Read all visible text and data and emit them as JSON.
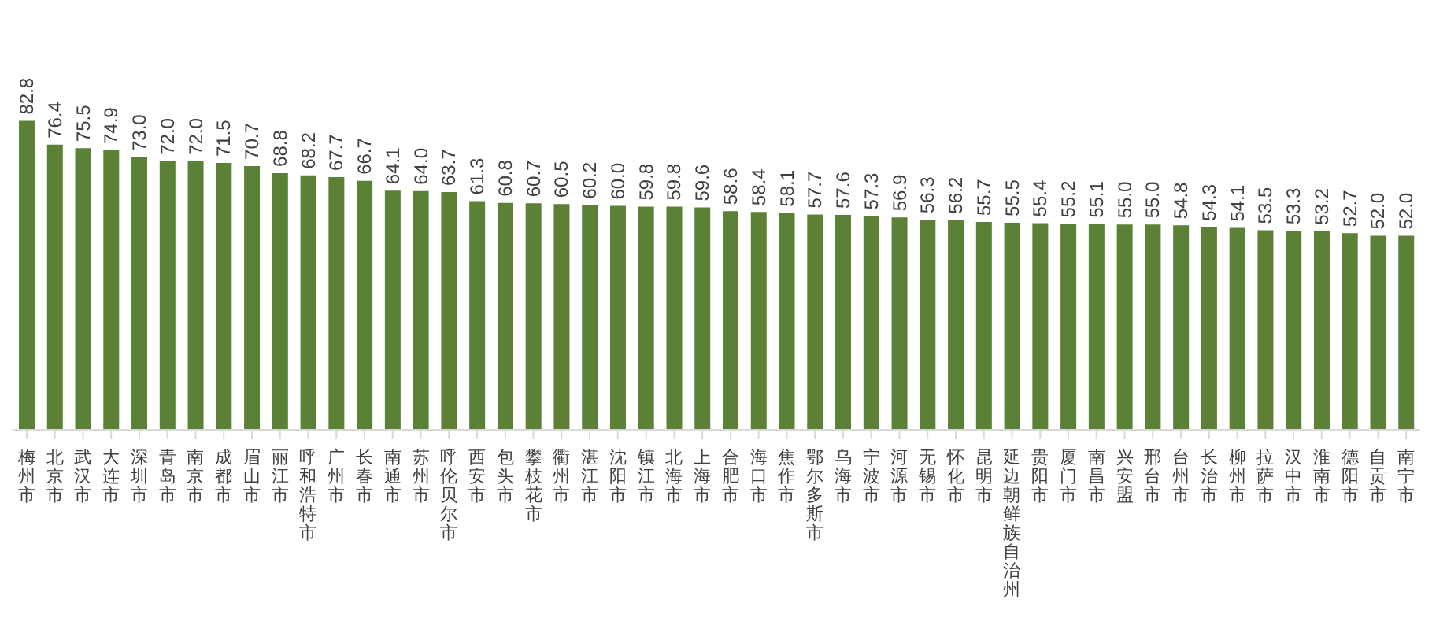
{
  "chart_data": {
    "type": "bar",
    "categories": [
      "梅州市",
      "北京市",
      "武汉市",
      "大连市",
      "深圳市",
      "青岛市",
      "南京市",
      "成都市",
      "眉山市",
      "丽江市",
      "呼和浩特市",
      "广州市",
      "长春市",
      "南通市",
      "苏州市",
      "呼伦贝尔市",
      "西安市",
      "包头市",
      "攀枝花市",
      "衢州市",
      "湛江市",
      "沈阳市",
      "镇江市",
      "北海市",
      "上海市",
      "合肥市",
      "海口市",
      "焦作市",
      "鄂尔多斯市",
      "乌海市",
      "宁波市",
      "河源市",
      "无锡市",
      "怀化市",
      "昆明市",
      "延边朝鲜族自治州",
      "贵阳市",
      "厦门市",
      "南昌市",
      "兴安盟",
      "邢台市",
      "台州市",
      "长治市",
      "柳州市",
      "拉萨市",
      "汉中市",
      "淮南市",
      "德阳市",
      "自贡市",
      "南宁市"
    ],
    "values": [
      82.8,
      76.4,
      75.5,
      74.9,
      73.0,
      72.0,
      72.0,
      71.5,
      70.7,
      68.8,
      68.2,
      67.7,
      66.7,
      64.1,
      64.0,
      63.7,
      61.3,
      60.8,
      60.7,
      60.5,
      60.2,
      60.0,
      59.8,
      59.8,
      59.6,
      58.6,
      58.4,
      58.1,
      57.7,
      57.6,
      57.3,
      56.9,
      56.3,
      56.2,
      55.7,
      55.5,
      55.4,
      55.2,
      55.1,
      55.0,
      55.0,
      54.8,
      54.3,
      54.1,
      53.5,
      53.3,
      53.2,
      52.7,
      52.0,
      52.0
    ],
    "value_labels": [
      "82.8",
      "76.4",
      "75.5",
      "74.9",
      "73.0",
      "72.0",
      "72.0",
      "71.5",
      "70.7",
      "68.8",
      "68.2",
      "67.7",
      "66.7",
      "64.1",
      "64.0",
      "63.7",
      "61.3",
      "60.8",
      "60.7",
      "60.5",
      "60.2",
      "60.0",
      "59.8",
      "59.8",
      "59.6",
      "58.6",
      "58.4",
      "58.1",
      "57.7",
      "57.6",
      "57.3",
      "56.9",
      "56.3",
      "56.2",
      "55.7",
      "55.5",
      "55.4",
      "55.2",
      "55.1",
      "55.0",
      "55.0",
      "54.8",
      "54.3",
      "54.1",
      "53.5",
      "53.3",
      "53.2",
      "52.7",
      "52.0",
      "52.0"
    ],
    "color": "#5b8136",
    "tick_labels": "x"
  }
}
